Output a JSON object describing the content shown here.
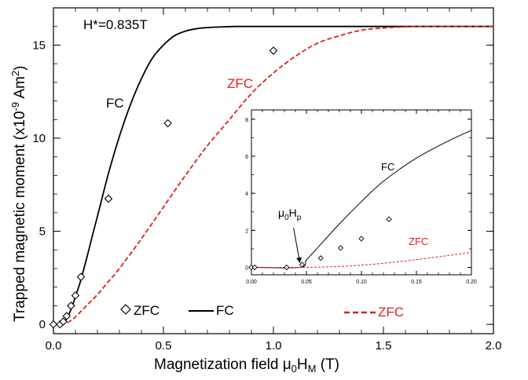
{
  "chart_data": [
    {
      "type": "line",
      "xlabel": "Magnetization field μ0HM (T)",
      "xlabel_parts": {
        "pre": "Magnetization field μ",
        "sub1": "0",
        "mid": "H",
        "sub2": "M",
        "post": " (T)"
      },
      "ylabel": "Trapped magnetic moment (x10-9 Am2)",
      "ylabel_parts": {
        "pre": "Trapped magnetic moment (x10",
        "sup1": "-9",
        "mid": " Am",
        "sup2": "2",
        "post": ")"
      },
      "xlim": [
        0,
        2.0
      ],
      "ylim": [
        -0.5,
        17
      ],
      "x_ticks": [
        0.0,
        0.5,
        1.0,
        1.5,
        2.0
      ],
      "x_tick_labels": [
        "0.0",
        "0.5",
        "1.0",
        "1.5",
        "2.0"
      ],
      "y_ticks": [
        0,
        5,
        10,
        15
      ],
      "y_tick_labels": [
        "0",
        "5",
        "10",
        "15"
      ],
      "grid": false,
      "series": [
        {
          "name": "FC",
          "style": "solid",
          "color": "#000000",
          "x": [
            0.0,
            0.02,
            0.04,
            0.05,
            0.06,
            0.08,
            0.1,
            0.12,
            0.15,
            0.18,
            0.2,
            0.25,
            0.3,
            0.35,
            0.4,
            0.45,
            0.5,
            0.55,
            0.6,
            0.65,
            0.7,
            0.75,
            0.8,
            0.835,
            1.0,
            1.5,
            2.0
          ],
          "y": [
            0.0,
            0.0,
            0.0,
            0.1,
            0.3,
            0.8,
            1.5,
            2.2,
            3.5,
            4.9,
            5.8,
            8.1,
            10.1,
            11.8,
            13.2,
            14.3,
            15.0,
            15.5,
            15.75,
            15.88,
            15.94,
            15.97,
            15.99,
            16.0,
            16.0,
            16.0,
            16.0
          ]
        },
        {
          "name": "ZFC",
          "style": "dashed",
          "color": "#e02020",
          "x": [
            0.0,
            0.04,
            0.08,
            0.1,
            0.15,
            0.2,
            0.25,
            0.3,
            0.4,
            0.5,
            0.6,
            0.7,
            0.8,
            0.9,
            1.0,
            1.1,
            1.2,
            1.3,
            1.4,
            1.5,
            1.6,
            1.67,
            1.8,
            2.0
          ],
          "y": [
            0.0,
            0.0,
            0.2,
            0.4,
            1.0,
            1.6,
            2.3,
            3.0,
            4.6,
            6.3,
            8.0,
            9.6,
            11.0,
            12.4,
            13.5,
            14.4,
            15.1,
            15.5,
            15.8,
            15.92,
            15.98,
            16.0,
            16.0,
            16.0
          ]
        }
      ],
      "points": {
        "marker": "diamond",
        "x": [
          0.0,
          0.03,
          0.045,
          0.06,
          0.08,
          0.1,
          0.125,
          0.25,
          0.52,
          1.0
        ],
        "y": [
          0.0,
          0.0,
          0.15,
          0.45,
          1.0,
          1.55,
          2.55,
          6.75,
          10.8,
          14.7
        ]
      },
      "annotations": {
        "hstar": "H*=0.835T",
        "fc_label": "FC",
        "zfc_label": "ZFC"
      },
      "legend": {
        "placement": "bottom",
        "entries": [
          {
            "label": "ZFC",
            "marker": "diamond"
          },
          {
            "label": "FC",
            "line": "solid",
            "color": "#000000"
          },
          {
            "label": "ZFC",
            "line": "dashed",
            "color": "#e02020"
          }
        ]
      }
    },
    {
      "type": "line",
      "inset": true,
      "xlim": [
        0,
        0.2
      ],
      "ylim": [
        -0.4,
        8.5
      ],
      "x_ticks": [
        0.0,
        0.05,
        0.1,
        0.15,
        0.2
      ],
      "x_tick_labels": [
        "0.00",
        "0.05",
        "0.10",
        "0.15",
        "0.20"
      ],
      "y_ticks": [
        0,
        2,
        4,
        6,
        8
      ],
      "y_tick_labels": [
        "0",
        "2",
        "4",
        "6",
        "8"
      ],
      "series": [
        {
          "name": "FC",
          "style": "solid",
          "color": "#000000",
          "x": [
            0.0,
            0.044,
            0.05,
            0.06,
            0.08,
            0.1,
            0.12,
            0.15,
            0.18,
            0.2
          ],
          "y": [
            0.0,
            0.0,
            0.4,
            1.05,
            2.35,
            3.55,
            4.65,
            5.9,
            6.85,
            7.4
          ]
        },
        {
          "name": "ZFC",
          "style": "dashed",
          "color": "#e02020",
          "x": [
            0.0,
            0.05,
            0.08,
            0.1,
            0.12,
            0.15,
            0.18,
            0.2
          ],
          "y": [
            0.0,
            0.0,
            0.05,
            0.12,
            0.22,
            0.42,
            0.65,
            0.8
          ]
        }
      ],
      "points": {
        "marker": "diamond",
        "x": [
          0.0,
          0.003,
          0.032,
          0.046,
          0.063,
          0.081,
          0.1,
          0.125
        ],
        "y": [
          0.0,
          0.0,
          0.0,
          0.15,
          0.5,
          1.05,
          1.55,
          2.6
        ]
      },
      "annotations": {
        "fc_label": "FC",
        "zfc_label": "ZFC",
        "hp_label_parts": {
          "pre": "μ",
          "sub1": "0",
          "mid": "H",
          "sub2": "p"
        },
        "hp_arrow_target": [
          0.044,
          0.05
        ]
      }
    }
  ]
}
